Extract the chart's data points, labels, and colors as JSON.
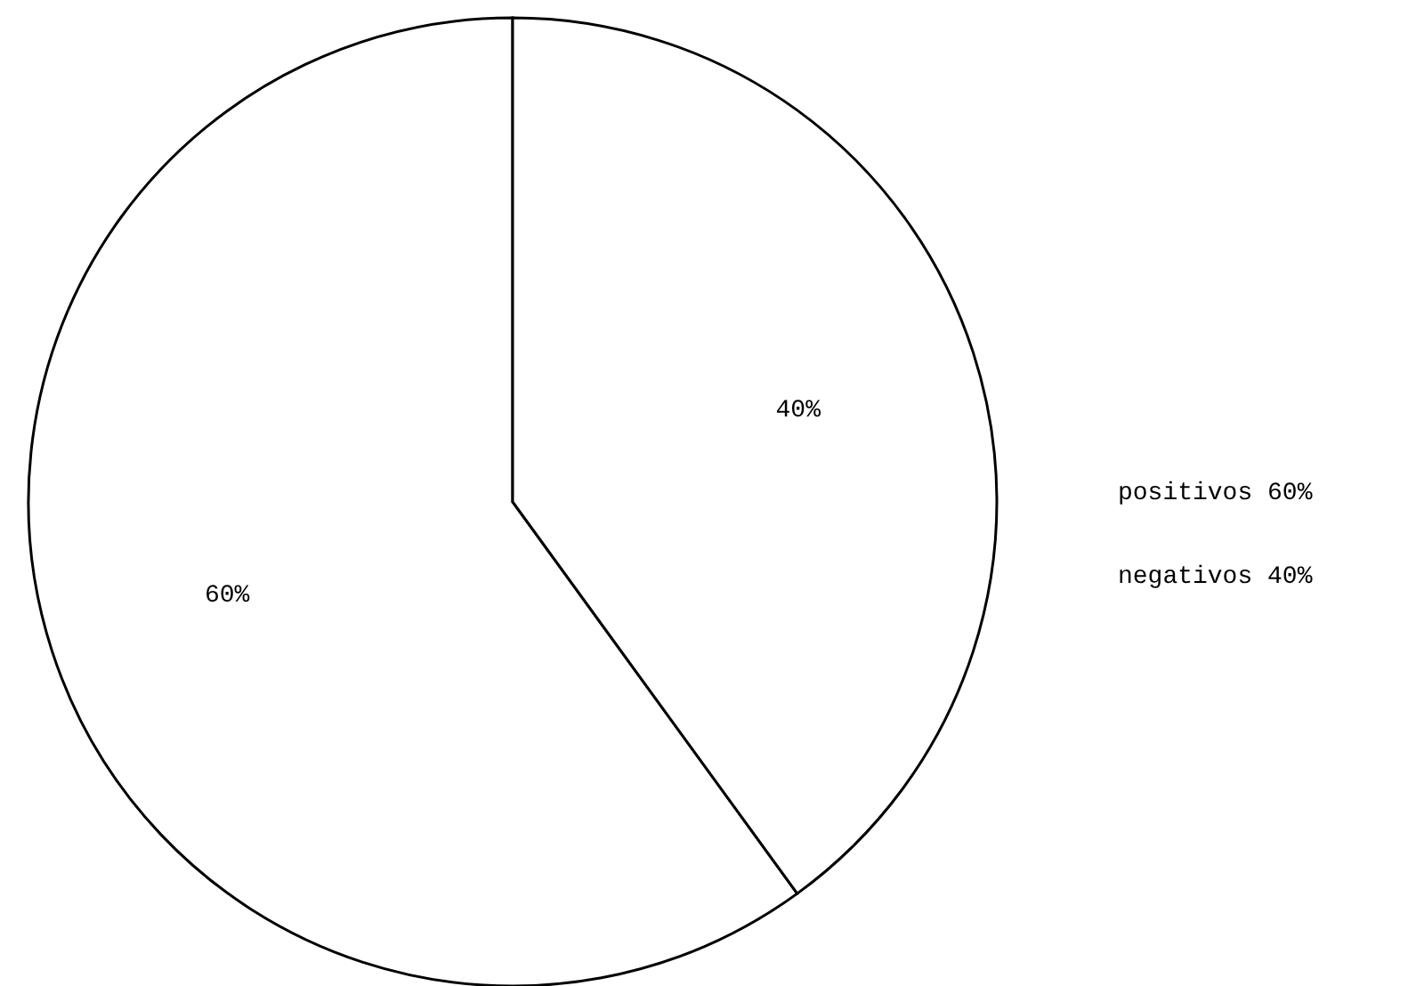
{
  "chart_data": {
    "type": "pie",
    "categories": [
      null,
      null
    ],
    "values": [
      60,
      40
    ],
    "colors": [
      "#ffffff",
      "#ffffff"
    ],
    "value_labels": [
      "60%",
      "40%"
    ],
    "annotations": [
      "positivos 60%",
      "negativos 40%"
    ]
  }
}
